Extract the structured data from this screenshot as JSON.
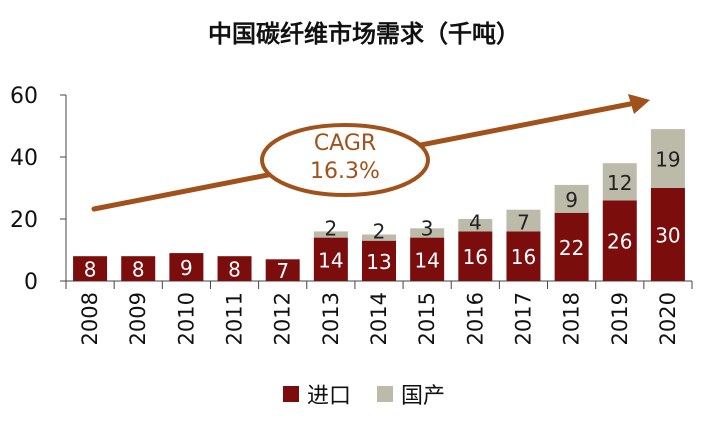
{
  "chart_data": {
    "type": "bar",
    "stacked": true,
    "title": "中国碳纤维市场需求（千吨）",
    "categories": [
      "2008",
      "2009",
      "2010",
      "2011",
      "2012",
      "2013",
      "2014",
      "2015",
      "2016",
      "2017",
      "2018",
      "2019",
      "2020"
    ],
    "series": [
      {
        "name": "进口",
        "color": "#7b0d0d",
        "values": [
          8,
          8,
          9,
          8,
          7,
          14,
          13,
          14,
          16,
          16,
          22,
          26,
          30
        ]
      },
      {
        "name": "国产",
        "color": "#bcbaa8",
        "values": [
          null,
          null,
          null,
          null,
          null,
          2,
          2,
          3,
          4,
          7,
          9,
          12,
          19
        ]
      }
    ],
    "yticks": [
      0,
      20,
      40,
      60
    ],
    "ylim": [
      0,
      60
    ],
    "grid": false,
    "legend_position": "bottom",
    "annotation": {
      "lines": [
        "CAGR",
        "16.3%"
      ],
      "color": "#a0521a",
      "arrow": "upward trend arrow"
    }
  }
}
